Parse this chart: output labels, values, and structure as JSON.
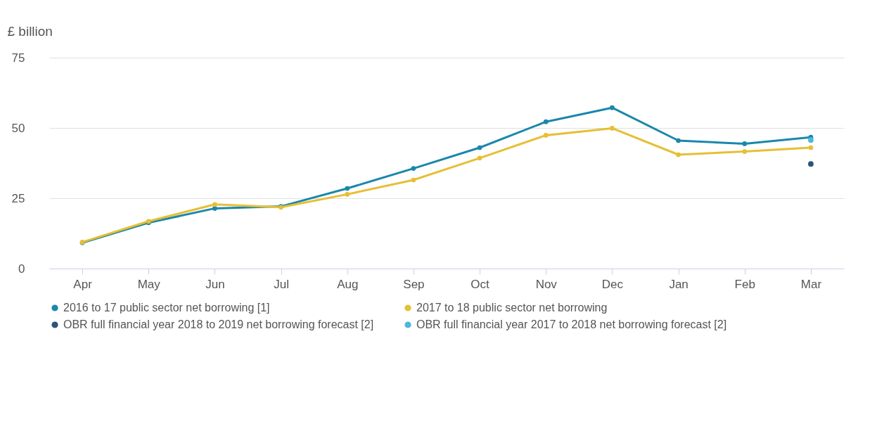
{
  "chart_data": {
    "type": "line",
    "ylabel": "£ billion",
    "categories": [
      "Apr",
      "May",
      "Jun",
      "Jul",
      "Aug",
      "Sep",
      "Oct",
      "Nov",
      "Dec",
      "Jan",
      "Feb",
      "Mar"
    ],
    "ylim": [
      0,
      75
    ],
    "yticks": [
      0,
      25,
      50,
      75
    ],
    "grid": "y",
    "legend": "bottom",
    "marker": "circle",
    "series": [
      {
        "name": "2016 to 17 public sector net borrowing [1]",
        "color": "#1a87ab",
        "values": [
          9.2,
          16.3,
          21.4,
          22.1,
          28.5,
          35.6,
          43.0,
          52.2,
          57.2,
          45.5,
          44.4,
          46.7
        ]
      },
      {
        "name": "2017 to 18 public sector net borrowing",
        "color": "#e6bf35",
        "values": [
          9.4,
          16.8,
          22.8,
          21.8,
          26.4,
          31.5,
          39.3,
          47.4,
          49.9,
          40.5,
          41.6,
          43.0
        ]
      },
      {
        "name": "OBR full financial year 2018 to 2019 net borrowing forecast [2]",
        "color": "#2d5478",
        "type": "scatter",
        "values": [
          null,
          null,
          null,
          null,
          null,
          null,
          null,
          null,
          null,
          null,
          null,
          37.2
        ]
      },
      {
        "name": "OBR full financial year 2017 to 2018 net borrowing forecast [2]",
        "color": "#4bb8e0",
        "type": "scatter",
        "values": [
          null,
          null,
          null,
          null,
          null,
          null,
          null,
          null,
          null,
          null,
          null,
          45.7
        ]
      }
    ]
  }
}
